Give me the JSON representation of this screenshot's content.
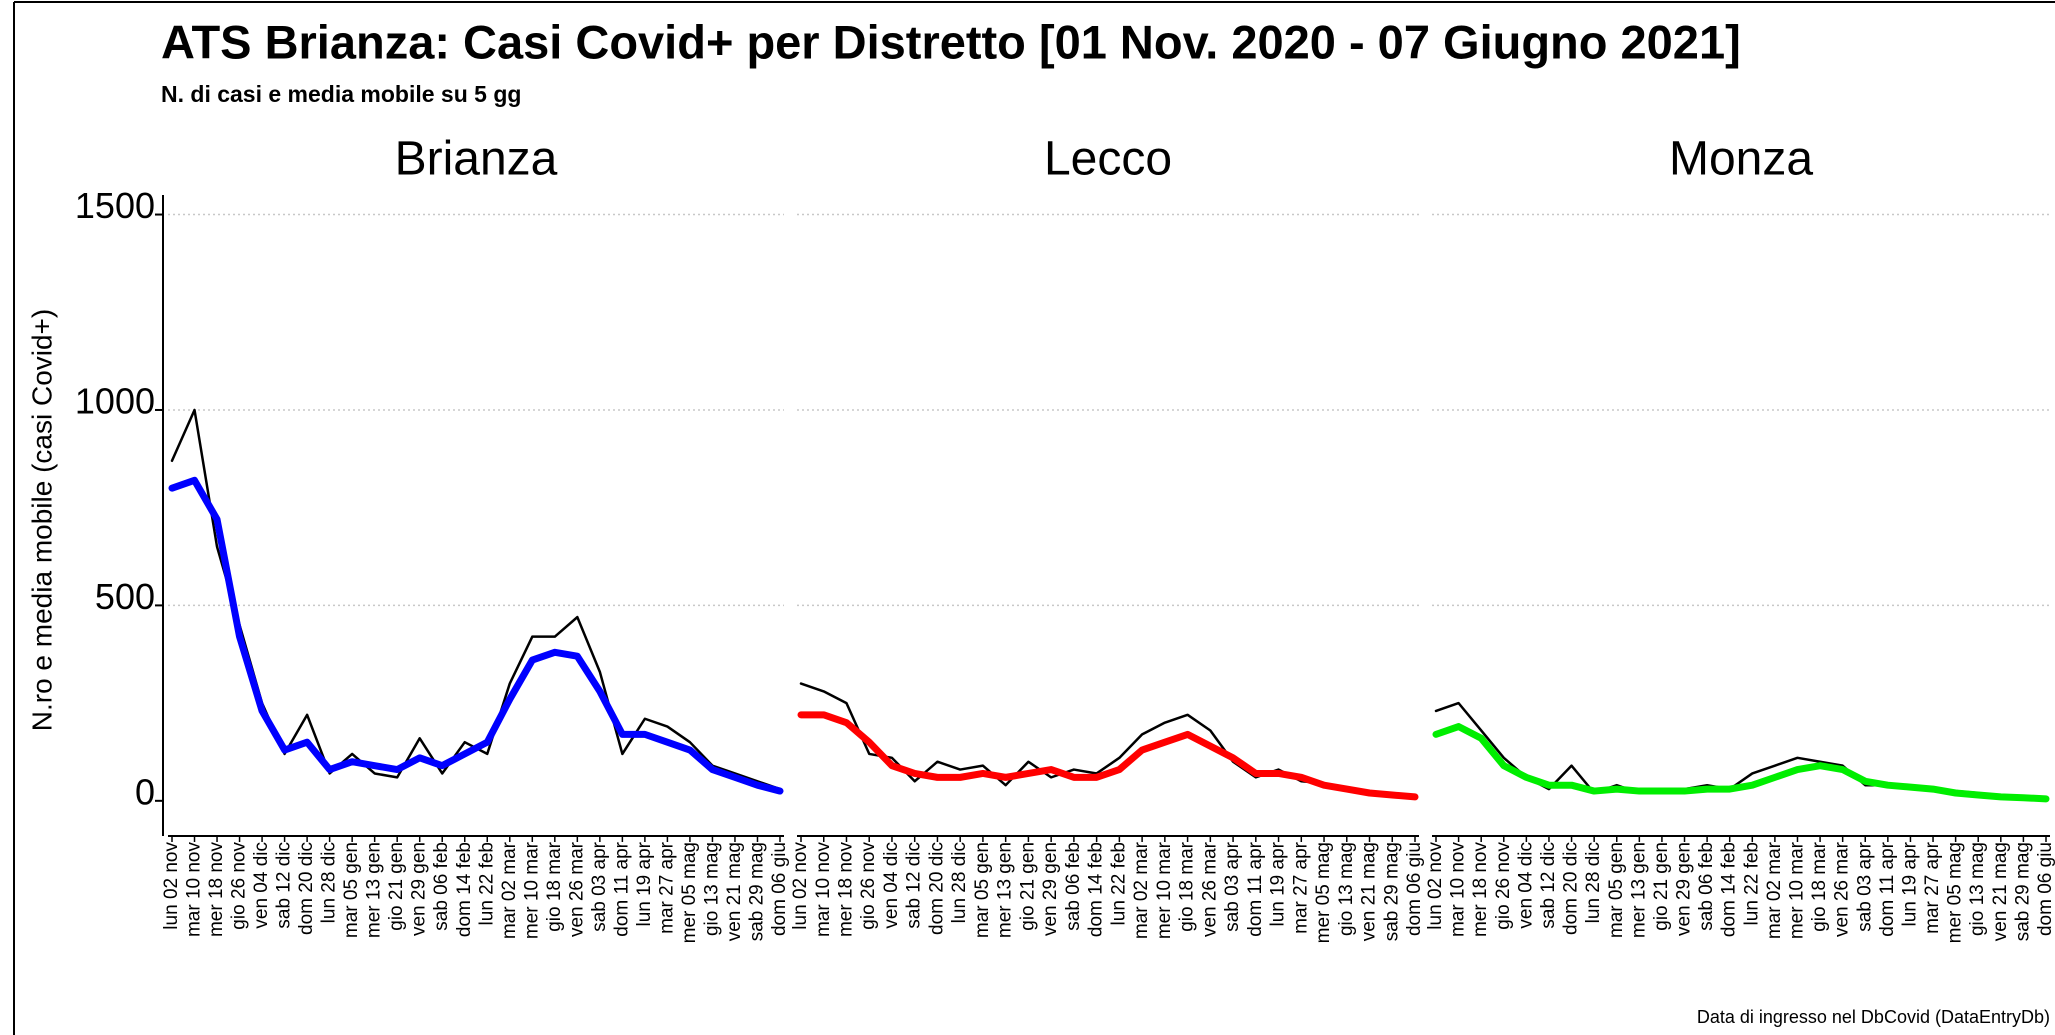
{
  "header": {
    "title": "ATS Brianza: Casi Covid+ per Distretto [01 Nov. 2020 - 07 Giugno 2021]",
    "subtitle": "N. di casi e media mobile su 5 gg",
    "y_label": "N.ro e media mobile (casi Covid+)",
    "source": "Data di ingresso nel DbCovid (DataEntryDb)"
  },
  "chart_data": [
    {
      "type": "line",
      "title": "Brianza",
      "categories": [
        "lun 02 nov",
        "mar 10 nov",
        "mer 18 nov",
        "gio 26 nov",
        "ven 04 dic",
        "sab 12 dic",
        "dom 20 dic",
        "lun 28 dic",
        "mar 05 gen",
        "mer 13 gen",
        "gio 21 gen",
        "ven 29 gen",
        "sab 06 feb",
        "dom 14 feb",
        "lun 22 feb",
        "mar 02 mar",
        "mer 10 mar",
        "gio 18 mar",
        "ven 26 mar",
        "sab 03 apr",
        "dom 11 apr",
        "lun 19 apr",
        "mar 27 apr",
        "mer 05 mag",
        "gio 13 mag",
        "ven 21 mag",
        "sab 29 mag",
        "dom 06 giu"
      ],
      "ylim": [
        -90,
        1550
      ],
      "yticks": [
        0,
        500,
        1000,
        1500
      ],
      "grid": true,
      "series": [
        {
          "color": "#000000",
          "values": [
            870,
            1000,
            650,
            450,
            250,
            120,
            220,
            70,
            120,
            70,
            60,
            160,
            70,
            150,
            120,
            300,
            420,
            420,
            470,
            330,
            120,
            210,
            190,
            150,
            90,
            70,
            50,
            30
          ]
        },
        {
          "color": "#0000ff",
          "values": [
            800,
            820,
            720,
            420,
            230,
            130,
            150,
            80,
            100,
            90,
            80,
            110,
            90,
            120,
            150,
            260,
            360,
            380,
            370,
            280,
            170,
            170,
            150,
            130,
            80,
            60,
            40,
            25
          ]
        }
      ]
    },
    {
      "type": "line",
      "title": "Lecco",
      "categories": [
        "lun 02 nov",
        "mar 10 nov",
        "mer 18 nov",
        "gio 26 nov",
        "ven 04 dic",
        "sab 12 dic",
        "dom 20 dic",
        "lun 28 dic",
        "mar 05 gen",
        "mer 13 gen",
        "gio 21 gen",
        "ven 29 gen",
        "sab 06 feb",
        "dom 14 feb",
        "lun 22 feb",
        "mar 02 mar",
        "mer 10 mar",
        "gio 18 mar",
        "ven 26 mar",
        "sab 03 apr",
        "dom 11 apr",
        "lun 19 apr",
        "mar 27 apr",
        "mer 05 mag",
        "gio 13 mag",
        "ven 21 mag",
        "sab 29 mag",
        "dom 06 giu"
      ],
      "series": [
        {
          "color": "#000000",
          "values": [
            300,
            280,
            250,
            120,
            110,
            50,
            100,
            80,
            90,
            40,
            100,
            60,
            80,
            70,
            110,
            170,
            200,
            220,
            180,
            100,
            60,
            80,
            50,
            45,
            30,
            25,
            15,
            10
          ]
        },
        {
          "color": "#ff0000",
          "values": [
            220,
            220,
            200,
            150,
            90,
            70,
            60,
            60,
            70,
            60,
            70,
            80,
            60,
            60,
            80,
            130,
            150,
            170,
            140,
            110,
            70,
            70,
            60,
            40,
            30,
            20,
            15,
            10
          ]
        }
      ]
    },
    {
      "type": "line",
      "title": "Monza",
      "categories": [
        "lun 02 nov",
        "mar 10 nov",
        "mer 18 nov",
        "gio 26 nov",
        "ven 04 dic",
        "sab 12 dic",
        "dom 20 dic",
        "lun 28 dic",
        "mar 05 gen",
        "mer 13 gen",
        "gio 21 gen",
        "ven 29 gen",
        "sab 06 feb",
        "dom 14 feb",
        "lun 22 feb",
        "mar 02 mar",
        "mer 10 mar",
        "gio 18 mar",
        "ven 26 mar",
        "sab 03 apr",
        "dom 11 apr",
        "lun 19 apr",
        "mar 27 apr",
        "mer 05 mag",
        "gio 13 mag",
        "ven 21 mag",
        "sab 29 mag",
        "dom 06 giu"
      ],
      "series": [
        {
          "color": "#000000",
          "values": [
            230,
            250,
            180,
            110,
            60,
            30,
            90,
            20,
            40,
            20,
            20,
            30,
            40,
            30,
            70,
            90,
            110,
            100,
            90,
            40,
            40,
            40,
            30,
            25,
            20,
            10,
            8,
            5
          ]
        },
        {
          "color": "#00ee00",
          "values": [
            170,
            190,
            160,
            90,
            60,
            40,
            40,
            25,
            30,
            25,
            25,
            25,
            30,
            30,
            40,
            60,
            80,
            90,
            80,
            50,
            40,
            35,
            30,
            20,
            15,
            10,
            8,
            5
          ]
        }
      ]
    }
  ]
}
